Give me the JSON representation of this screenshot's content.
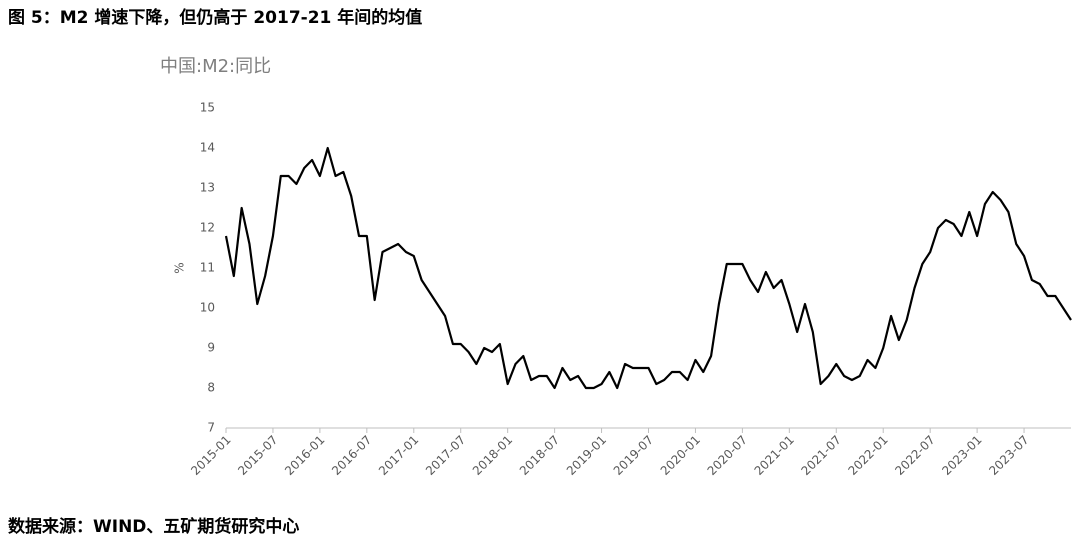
{
  "chart_data": {
    "type": "line",
    "title": "图 5：M2 增速下降，但仍高于 2017-21 年间的均值",
    "subtitle": "中国:M2:同比",
    "y_label": "%",
    "source": "数据来源：WIND、五矿期货研究中心",
    "categories": [
      "2015-01",
      null,
      null,
      null,
      null,
      null,
      "2015-07",
      null,
      null,
      null,
      null,
      null,
      "2016-01",
      null,
      null,
      null,
      null,
      null,
      "2016-07",
      null,
      null,
      null,
      null,
      null,
      "2017-01",
      null,
      null,
      null,
      null,
      null,
      "2017-07",
      null,
      null,
      null,
      null,
      null,
      "2018-01",
      null,
      null,
      null,
      null,
      null,
      "2018-07",
      null,
      null,
      null,
      null,
      null,
      "2019-01",
      null,
      null,
      null,
      null,
      null,
      "2019-07",
      null,
      null,
      null,
      null,
      null,
      "2020-01",
      null,
      null,
      null,
      null,
      null,
      "2020-07",
      null,
      null,
      null,
      null,
      null,
      "2021-01",
      null,
      null,
      null,
      null,
      null,
      "2021-07",
      null,
      null,
      null,
      null,
      null,
      "2022-01",
      null,
      null,
      null,
      null,
      null,
      "2022-07",
      null,
      null,
      null,
      null,
      null,
      "2023-01",
      null,
      null,
      null,
      null,
      null,
      "2023-07",
      null,
      null,
      null,
      null,
      null,
      null
    ],
    "series": [
      {
        "name": "中国:M2:同比",
        "color": "#000000",
        "values": [
          11.8,
          10.8,
          12.5,
          11.6,
          10.1,
          10.8,
          11.8,
          13.3,
          13.3,
          13.1,
          13.5,
          13.7,
          13.3,
          14.0,
          13.3,
          13.4,
          12.8,
          11.8,
          11.8,
          10.2,
          11.4,
          11.5,
          11.6,
          11.4,
          11.3,
          10.7,
          10.4,
          10.1,
          9.8,
          9.1,
          9.1,
          8.9,
          8.6,
          9.0,
          8.9,
          9.1,
          8.1,
          8.6,
          8.8,
          8.2,
          8.3,
          8.3,
          8.0,
          8.5,
          8.2,
          8.3,
          8.0,
          8.0,
          8.1,
          8.4,
          8.0,
          8.6,
          8.5,
          8.5,
          8.5,
          8.1,
          8.2,
          8.4,
          8.4,
          8.2,
          8.7,
          8.4,
          8.8,
          10.1,
          11.1,
          11.1,
          11.1,
          10.7,
          10.4,
          10.9,
          10.5,
          10.7,
          10.1,
          9.4,
          10.1,
          9.4,
          8.1,
          8.3,
          8.6,
          8.3,
          8.2,
          8.3,
          8.7,
          8.5,
          9.0,
          9.8,
          9.2,
          9.7,
          10.5,
          11.1,
          11.4,
          12.0,
          12.2,
          12.1,
          11.8,
          12.4,
          11.8,
          12.6,
          12.9,
          12.7,
          12.4,
          11.6,
          11.3,
          10.7,
          10.6,
          10.3,
          10.3,
          10.0,
          9.7
        ]
      }
    ],
    "ylim": [
      7,
      15
    ],
    "yticks": [
      7,
      8,
      9,
      10,
      11,
      12,
      13,
      14,
      15
    ],
    "grid": false
  }
}
